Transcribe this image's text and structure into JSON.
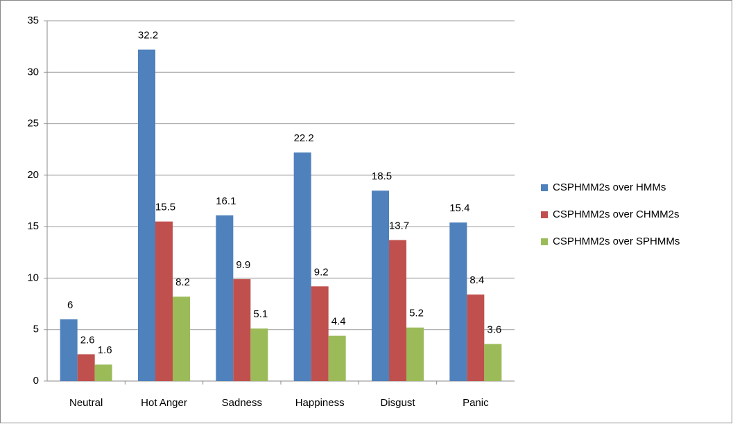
{
  "chart_data": {
    "type": "bar",
    "categories": [
      "Neutral",
      "Hot Anger",
      "Sadness",
      "Happiness",
      "Disgust",
      "Panic"
    ],
    "series": [
      {
        "name": "CSPHMM2s over HMMs",
        "color": "#4f81bd",
        "values": [
          6,
          32.2,
          16.1,
          22.2,
          18.5,
          15.4
        ]
      },
      {
        "name": "CSPHMM2s over CHMM2s",
        "color": "#c0504d",
        "values": [
          2.6,
          15.5,
          9.9,
          9.2,
          13.7,
          8.4
        ]
      },
      {
        "name": "CSPHMM2s over SPHMMs",
        "color": "#9bbb59",
        "values": [
          1.6,
          8.2,
          5.1,
          4.4,
          5.2,
          3.6
        ]
      }
    ],
    "ylim": [
      0,
      35
    ],
    "yticks": [
      0,
      5,
      10,
      15,
      20,
      25,
      30,
      35
    ],
    "grid": true,
    "legend": "right"
  }
}
